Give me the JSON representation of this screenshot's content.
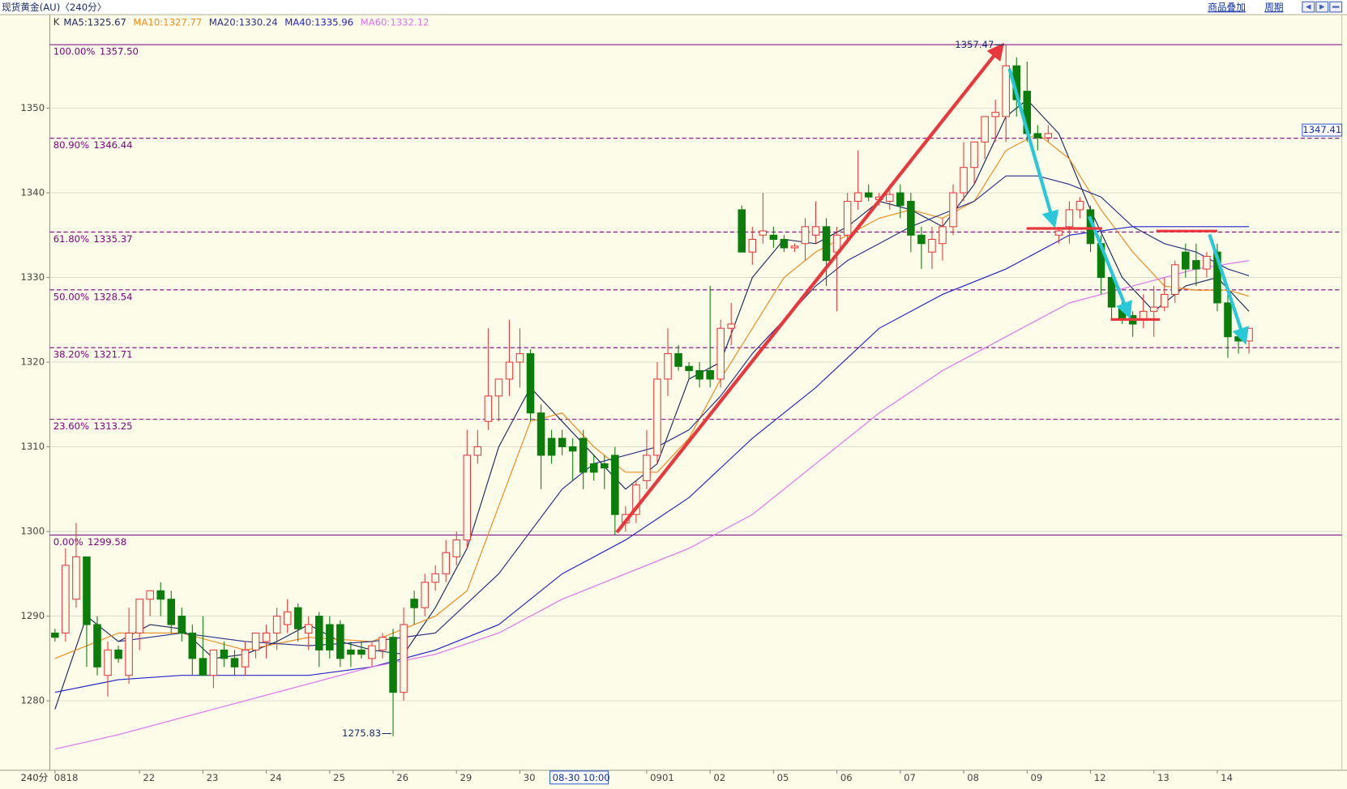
{
  "header": {
    "title": "现货黄金(AU)〈240分〉",
    "links": [
      "商品叠加",
      "周期"
    ]
  },
  "chart_data": {
    "type": "candlestick",
    "period_label": "240分",
    "indicator_label": "K",
    "legend_separator": ":",
    "categories": [
      "0818",
      null,
      null,
      null,
      null,
      null,
      null,
      null,
      "22",
      null,
      null,
      null,
      null,
      null,
      "23",
      null,
      null,
      null,
      null,
      null,
      "24",
      null,
      null,
      null,
      null,
      null,
      "25",
      null,
      null,
      null,
      null,
      null,
      "26",
      null,
      null,
      null,
      null,
      null,
      "29",
      null,
      null,
      null,
      null,
      null,
      "30",
      null,
      null,
      "08-30 10:00",
      null,
      null,
      null,
      null,
      null,
      null,
      null,
      null,
      "0901",
      null,
      null,
      null,
      null,
      null,
      "02",
      null,
      null,
      null,
      null,
      null,
      "05",
      null,
      null,
      null,
      null,
      null,
      "06",
      null,
      null,
      null,
      null,
      null,
      "07",
      null,
      null,
      null,
      null,
      null,
      "08",
      null,
      null,
      null,
      null,
      null,
      "09",
      null,
      null,
      null,
      null,
      null,
      "12",
      null,
      null,
      null,
      null,
      null,
      "13",
      null,
      null,
      null,
      null,
      null,
      "14",
      null,
      null,
      null
    ],
    "highlighted_category": 47,
    "candles": [
      [
        1288,
        1288.5,
        1287,
        1287.5
      ],
      [
        1288,
        1298,
        1287,
        1296
      ],
      [
        1292,
        1301,
        1291,
        1297
      ],
      [
        1297,
        1297,
        1284,
        1289
      ],
      [
        1289,
        1290,
        1283,
        1284
      ],
      [
        1283,
        1287,
        1280.5,
        1286
      ],
      [
        1286,
        1286.5,
        1284.5,
        1285
      ],
      [
        1283,
        1291,
        1282,
        1288
      ],
      [
        1288,
        1292,
        1286,
        1292
      ],
      [
        1292,
        1293,
        1290,
        1293
      ],
      [
        1293,
        1294,
        1290,
        1292
      ],
      [
        1292,
        1293,
        1288,
        1289
      ],
      [
        1290,
        1291,
        1287,
        1288
      ],
      [
        1288,
        1289,
        1283,
        1285
      ],
      [
        1285,
        1290,
        1283,
        1283
      ],
      [
        1283,
        1286,
        1281.5,
        1286
      ],
      [
        1286,
        1287,
        1284,
        1285
      ],
      [
        1285,
        1286,
        1283,
        1284
      ],
      [
        1284,
        1287,
        1283,
        1286
      ],
      [
        1286,
        1288,
        1285,
        1288
      ],
      [
        1287,
        1289,
        1285,
        1288
      ],
      [
        1288,
        1291,
        1286,
        1290
      ],
      [
        1289,
        1292,
        1288,
        1290.5
      ],
      [
        1291,
        1291.5,
        1287,
        1288.5
      ],
      [
        1288,
        1290,
        1286,
        1289
      ],
      [
        1290,
        1290.5,
        1284,
        1286
      ],
      [
        1289,
        1290,
        1285,
        1286
      ],
      [
        1289,
        1289.5,
        1284,
        1285
      ],
      [
        1286,
        1287,
        1284,
        1285.5
      ],
      [
        1286,
        1287,
        1285,
        1285.5
      ],
      [
        1285,
        1287,
        1284,
        1286.5
      ],
      [
        1286,
        1288,
        1285,
        1287.5
      ],
      [
        1287.5,
        1288.5,
        1275.83,
        1281
      ],
      [
        1281,
        1291,
        1280,
        1289
      ],
      [
        1292,
        1293,
        1289,
        1291
      ],
      [
        1291,
        1295,
        1290,
        1294
      ],
      [
        1294,
        1296,
        1293,
        1295
      ],
      [
        1295,
        1299,
        1294,
        1297.5
      ],
      [
        1297,
        1300,
        1296,
        1299
      ],
      [
        1299,
        1312,
        1298,
        1309
      ],
      [
        1309,
        1312,
        1308,
        1310
      ],
      [
        1313,
        1324,
        1312,
        1316
      ],
      [
        1316,
        1318,
        1313,
        1318
      ],
      [
        1318,
        1325,
        1316,
        1320
      ],
      [
        1320,
        1324,
        1317,
        1321
      ],
      [
        1321,
        1321.5,
        1313,
        1314
      ],
      [
        1314,
        1315,
        1305,
        1309
      ],
      [
        1311,
        1312,
        1308,
        1309
      ],
      [
        1311,
        1312,
        1309,
        1310
      ],
      [
        1310,
        1311,
        1306,
        1309.5
      ],
      [
        1311,
        1312,
        1305,
        1307
      ],
      [
        1308,
        1309,
        1306,
        1307
      ],
      [
        1308,
        1309,
        1305,
        1307.5
      ],
      [
        1309,
        1310,
        1299.58,
        1302
      ],
      [
        1301,
        1303,
        1300,
        1302
      ],
      [
        1302,
        1306,
        1301,
        1305.5
      ],
      [
        1306,
        1312,
        1305,
        1309
      ],
      [
        1309,
        1320,
        1308,
        1318
      ],
      [
        1318,
        1324,
        1316,
        1321
      ],
      [
        1321,
        1322,
        1319,
        1319.5
      ],
      [
        1319.5,
        1320,
        1318,
        1319
      ],
      [
        1319,
        1320,
        1317,
        1318
      ],
      [
        1319,
        1329,
        1317,
        1318
      ],
      [
        1318,
        1325,
        1317,
        1324
      ],
      [
        1324,
        1327,
        1322,
        1324.5
      ],
      [
        1338,
        1338.5,
        1333,
        1333
      ],
      [
        1333,
        1336,
        1331.5,
        1334.5
      ],
      [
        1335,
        1340,
        1334,
        1335.5
      ],
      [
        1335,
        1336,
        1333.5,
        1334.5
      ],
      [
        1334.5,
        1335,
        1333,
        1333.5
      ],
      [
        1333.5,
        1334,
        1333,
        1333.7
      ],
      [
        1334,
        1337,
        1332,
        1336
      ],
      [
        1335,
        1339,
        1334,
        1336
      ],
      [
        1336,
        1337,
        1329,
        1332
      ],
      [
        1333,
        1336,
        1326,
        1335
      ],
      [
        1335,
        1340,
        1334,
        1339
      ],
      [
        1339,
        1345,
        1338,
        1340
      ],
      [
        1340,
        1341,
        1339,
        1339.5
      ],
      [
        1339.2,
        1340,
        1338.5,
        1339.5
      ],
      [
        1339,
        1341,
        1338,
        1339.8
      ],
      [
        1340,
        1341,
        1337,
        1338.5
      ],
      [
        1339,
        1340,
        1333,
        1335
      ],
      [
        1335,
        1336,
        1331,
        1334
      ],
      [
        1333,
        1336,
        1331,
        1334.5
      ],
      [
        1334,
        1337,
        1332,
        1336
      ],
      [
        1336,
        1341,
        1335,
        1340
      ],
      [
        1340,
        1346,
        1339,
        1343
      ],
      [
        1343,
        1346,
        1341,
        1346
      ],
      [
        1346,
        1349,
        1344,
        1349
      ],
      [
        1349,
        1351,
        1346,
        1349.5
      ],
      [
        1349,
        1357.47,
        1346,
        1355
      ],
      [
        1355,
        1356,
        1349,
        1351
      ],
      [
        1352,
        1355.5,
        1346,
        1347
      ],
      [
        1347,
        1348,
        1345,
        1346.5
      ],
      [
        1346.5,
        1348,
        1346,
        1347
      ],
      [
        1335,
        1336,
        1334,
        1335.5
      ],
      [
        1336,
        1339,
        1334,
        1338
      ],
      [
        1338,
        1339.5,
        1337,
        1339
      ],
      [
        1338,
        1338.5,
        1333,
        1334
      ],
      [
        1334,
        1335,
        1328,
        1330
      ],
      [
        1330,
        1331,
        1325,
        1326.5
      ],
      [
        1326.5,
        1328,
        1324.5,
        1325
      ],
      [
        1325.5,
        1326,
        1323,
        1324.5
      ],
      [
        1325,
        1328,
        1324,
        1326
      ],
      [
        1326,
        1329,
        1323,
        1326.5
      ],
      [
        1326.5,
        1330,
        1326,
        1328
      ],
      [
        1328,
        1332,
        1327,
        1331.5
      ],
      [
        1333,
        1334,
        1330,
        1331
      ],
      [
        1332,
        1334,
        1329,
        1331
      ],
      [
        1331,
        1333,
        1330,
        1332.5
      ],
      [
        1333,
        1334,
        1326,
        1327
      ],
      [
        1327,
        1328,
        1320.5,
        1323
      ],
      [
        1323,
        1323.5,
        1321,
        1322.5
      ],
      [
        1322.5,
        1324,
        1321,
        1324
      ]
    ],
    "up_color": "#e8383d",
    "down_color": "#0b7d0b",
    "ylim": [
      1272,
      1358
    ],
    "yticks": [
      1280,
      1290,
      1300,
      1310,
      1320,
      1330,
      1340,
      1350
    ],
    "grid": true,
    "series": [
      {
        "name": "MA5",
        "last": 1325.67,
        "color": "#1d2b60",
        "x": [
          0,
          3,
          6,
          9,
          12,
          15,
          18,
          21,
          24,
          27,
          30,
          33,
          36,
          39,
          42,
          45,
          48,
          51,
          54,
          57,
          60,
          63,
          66,
          69,
          72,
          75,
          78,
          81,
          84,
          87,
          90,
          92,
          95,
          98,
          101,
          104,
          107,
          110,
          113
        ],
        "values": [
          1279,
          1290,
          1287,
          1289,
          1288.5,
          1285,
          1285.5,
          1287,
          1289,
          1287,
          1286,
          1285.5,
          1291,
          1298,
          1310,
          1317,
          1313,
          1309,
          1305,
          1308,
          1318,
          1320,
          1330,
          1334.5,
          1334,
          1336,
          1339,
          1338,
          1336,
          1341,
          1349,
          1351,
          1347,
          1338,
          1330,
          1326,
          1329,
          1330,
          1326
        ]
      },
      {
        "name": "MA10",
        "last": 1327.77,
        "color": "#f08a1c",
        "x": [
          0,
          6,
          12,
          18,
          24,
          30,
          36,
          39,
          42,
          45,
          48,
          51,
          54,
          57,
          60,
          63,
          66,
          69,
          72,
          75,
          78,
          81,
          84,
          87,
          90,
          93,
          96,
          99,
          102,
          105,
          108,
          111,
          113
        ],
        "values": [
          1285,
          1288,
          1288,
          1286,
          1287.5,
          1287,
          1290,
          1293,
          1303,
          1313,
          1314,
          1310,
          1307,
          1307,
          1311,
          1318,
          1324,
          1330,
          1333,
          1335,
          1337,
          1338,
          1337,
          1339,
          1345,
          1347,
          1344,
          1338,
          1333,
          1329,
          1328.5,
          1328.5,
          1327.8
        ]
      },
      {
        "name": "MA20",
        "last": 1330.24,
        "color": "#2a2f8a",
        "x": [
          6,
          12,
          18,
          24,
          30,
          36,
          42,
          45,
          48,
          51,
          54,
          57,
          60,
          63,
          66,
          69,
          72,
          75,
          78,
          81,
          84,
          87,
          90,
          93,
          96,
          99,
          102,
          105,
          108,
          111,
          113
        ],
        "values": [
          1287,
          1288,
          1287,
          1286.5,
          1287,
          1288,
          1295,
          1300,
          1305,
          1308,
          1309,
          1310,
          1312,
          1316,
          1321,
          1325,
          1329,
          1332,
          1334,
          1336,
          1337.5,
          1339,
          1342,
          1342,
          1341,
          1339.5,
          1336,
          1334,
          1333,
          1331,
          1330.2
        ]
      },
      {
        "name": "MA40",
        "last": 1335.96,
        "color": "#2424c8",
        "x": [
          0,
          6,
          12,
          24,
          30,
          36,
          42,
          48,
          54,
          60,
          66,
          72,
          78,
          84,
          90,
          96,
          102,
          108,
          113
        ],
        "values": [
          1281,
          1282.5,
          1283,
          1283,
          1284,
          1286,
          1289,
          1295,
          1299,
          1304,
          1311,
          1317,
          1324,
          1328,
          1331,
          1335,
          1336,
          1336,
          1336
        ]
      },
      {
        "name": "MA60",
        "last": 1332.12,
        "color": "#e070f0",
        "x": [
          0,
          6,
          12,
          18,
          24,
          30,
          36,
          42,
          48,
          54,
          60,
          66,
          72,
          78,
          84,
          90,
          96,
          102,
          108,
          113
        ],
        "values": [
          1274.3,
          1276,
          1278,
          1280,
          1282,
          1284,
          1285.5,
          1288,
          1292,
          1295,
          1298,
          1302,
          1308,
          1314,
          1319,
          1323,
          1327,
          1329,
          1331,
          1332
        ]
      }
    ],
    "fib_levels": [
      {
        "percent": "100.00%",
        "price": {
          "value": 1357.5,
          "label": "1357.50"
        },
        "style": "solid"
      },
      {
        "percent": "80.90%",
        "price": 1346.44,
        "style": "dashed"
      },
      {
        "percent": "61.80%",
        "price": 1335.37,
        "style": "dashed"
      },
      {
        "percent": "50.00%",
        "price": 1328.54,
        "style": "dashed"
      },
      {
        "percent": "38.20%",
        "price": 1321.71,
        "style": "dashed"
      },
      {
        "percent": "23.60%",
        "price": 1313.25,
        "style": "dashed"
      },
      {
        "percent": "0.00%",
        "price": 1299.58,
        "style": "solid"
      }
    ],
    "fib_color": "#800080",
    "price_tag": 1347.41,
    "annotations": [
      {
        "x": 90,
        "value": 1357.47,
        "side": "top"
      },
      {
        "x": 32,
        "value": 1275.83,
        "side": "bottom"
      }
    ]
  }
}
